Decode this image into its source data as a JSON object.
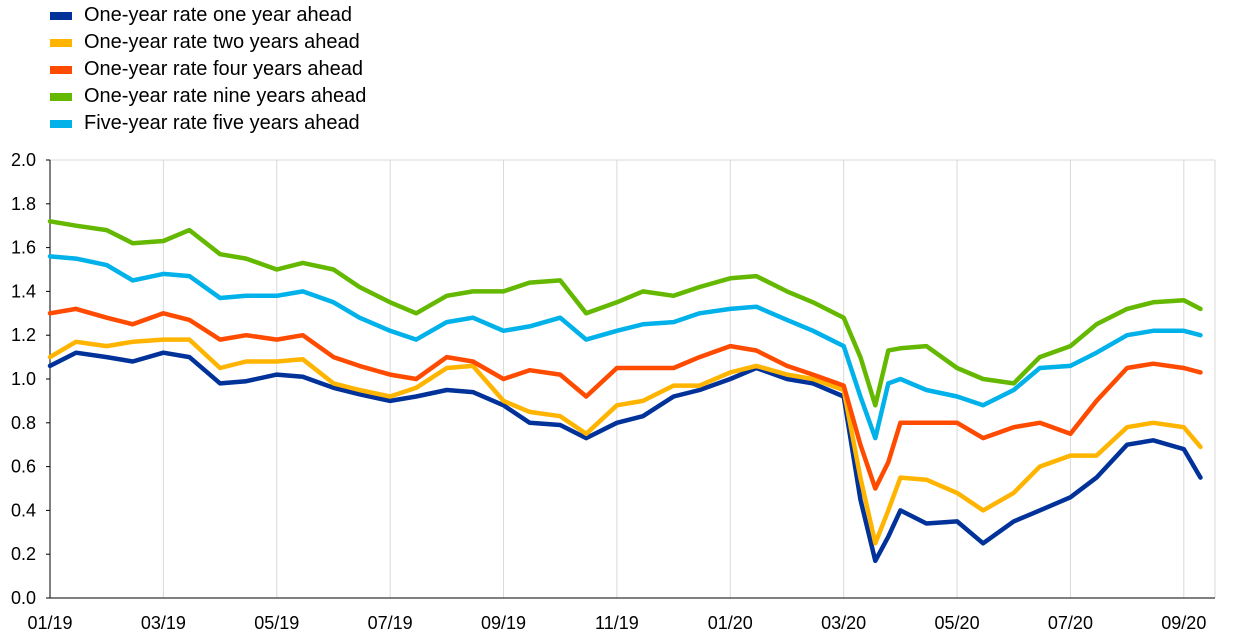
{
  "chart_data": {
    "type": "line",
    "title": "",
    "xlabel": "",
    "ylabel": "",
    "ylim": [
      0.0,
      2.0
    ],
    "yticks": [
      "0.0",
      "0.2",
      "0.4",
      "0.6",
      "0.8",
      "1.0",
      "1.2",
      "1.4",
      "1.6",
      "1.8",
      "2.0"
    ],
    "xticks": [
      "01/19",
      "03/19",
      "05/19",
      "07/19",
      "09/19",
      "11/19",
      "01/20",
      "03/20",
      "05/20",
      "07/20",
      "09/20"
    ],
    "grid": "vertical",
    "legend_position": "top-left",
    "x": [
      "2019-01-01",
      "2019-01-15",
      "2019-02-01",
      "2019-02-15",
      "2019-03-01",
      "2019-03-15",
      "2019-04-01",
      "2019-04-15",
      "2019-05-01",
      "2019-05-15",
      "2019-06-01",
      "2019-06-15",
      "2019-07-01",
      "2019-07-15",
      "2019-08-01",
      "2019-08-15",
      "2019-09-01",
      "2019-09-15",
      "2019-10-01",
      "2019-10-15",
      "2019-11-01",
      "2019-11-15",
      "2019-12-01",
      "2019-12-15",
      "2020-01-01",
      "2020-01-15",
      "2020-02-01",
      "2020-02-15",
      "2020-03-01",
      "2020-03-10",
      "2020-03-18",
      "2020-03-25",
      "2020-04-01",
      "2020-04-15",
      "2020-05-01",
      "2020-05-15",
      "2020-06-01",
      "2020-06-15",
      "2020-07-01",
      "2020-07-15",
      "2020-08-01",
      "2020-08-15",
      "2020-09-01",
      "2020-09-10"
    ],
    "series": [
      {
        "name": "One-year rate one year ahead",
        "color": "#003299",
        "values": [
          1.06,
          1.12,
          1.1,
          1.08,
          1.12,
          1.1,
          0.98,
          0.99,
          1.02,
          1.01,
          0.96,
          0.93,
          0.9,
          0.92,
          0.95,
          0.94,
          0.88,
          0.8,
          0.79,
          0.73,
          0.8,
          0.83,
          0.92,
          0.95,
          1.0,
          1.05,
          1.0,
          0.98,
          0.92,
          0.45,
          0.17,
          0.28,
          0.4,
          0.34,
          0.35,
          0.25,
          0.35,
          0.4,
          0.46,
          0.55,
          0.7,
          0.72,
          0.68,
          0.55
        ]
      },
      {
        "name": "One-year rate two years ahead",
        "color": "#FFB400",
        "values": [
          1.1,
          1.17,
          1.15,
          1.17,
          1.18,
          1.18,
          1.05,
          1.08,
          1.08,
          1.09,
          0.98,
          0.95,
          0.92,
          0.96,
          1.05,
          1.06,
          0.9,
          0.85,
          0.83,
          0.75,
          0.88,
          0.9,
          0.97,
          0.97,
          1.03,
          1.06,
          1.02,
          1.0,
          0.95,
          0.55,
          0.25,
          0.4,
          0.55,
          0.54,
          0.48,
          0.4,
          0.48,
          0.6,
          0.65,
          0.65,
          0.78,
          0.8,
          0.78,
          0.69
        ]
      },
      {
        "name": "One-year rate four years ahead",
        "color": "#FF4B00",
        "values": [
          1.3,
          1.32,
          1.28,
          1.25,
          1.3,
          1.27,
          1.18,
          1.2,
          1.18,
          1.2,
          1.1,
          1.06,
          1.02,
          1.0,
          1.1,
          1.08,
          1.0,
          1.04,
          1.02,
          0.92,
          1.05,
          1.05,
          1.05,
          1.1,
          1.15,
          1.13,
          1.06,
          1.02,
          0.97,
          0.7,
          0.5,
          0.62,
          0.8,
          0.8,
          0.8,
          0.73,
          0.78,
          0.8,
          0.75,
          0.9,
          1.05,
          1.07,
          1.05,
          1.03
        ]
      },
      {
        "name": "One-year rate nine years ahead",
        "color": "#65B800",
        "values": [
          1.72,
          1.7,
          1.68,
          1.62,
          1.63,
          1.68,
          1.57,
          1.55,
          1.5,
          1.53,
          1.5,
          1.42,
          1.35,
          1.3,
          1.38,
          1.4,
          1.4,
          1.44,
          1.45,
          1.3,
          1.35,
          1.4,
          1.38,
          1.42,
          1.46,
          1.47,
          1.4,
          1.35,
          1.28,
          1.1,
          0.88,
          1.13,
          1.14,
          1.15,
          1.05,
          1.0,
          0.98,
          1.1,
          1.15,
          1.25,
          1.32,
          1.35,
          1.36,
          1.32
        ]
      },
      {
        "name": "Five-year rate five years ahead",
        "color": "#00B1EA",
        "values": [
          1.56,
          1.55,
          1.52,
          1.45,
          1.48,
          1.47,
          1.37,
          1.38,
          1.38,
          1.4,
          1.35,
          1.28,
          1.22,
          1.18,
          1.26,
          1.28,
          1.22,
          1.24,
          1.28,
          1.18,
          1.22,
          1.25,
          1.26,
          1.3,
          1.32,
          1.33,
          1.27,
          1.22,
          1.15,
          0.92,
          0.73,
          0.98,
          1.0,
          0.95,
          0.92,
          0.88,
          0.95,
          1.05,
          1.06,
          1.12,
          1.2,
          1.22,
          1.22,
          1.2
        ]
      }
    ]
  }
}
